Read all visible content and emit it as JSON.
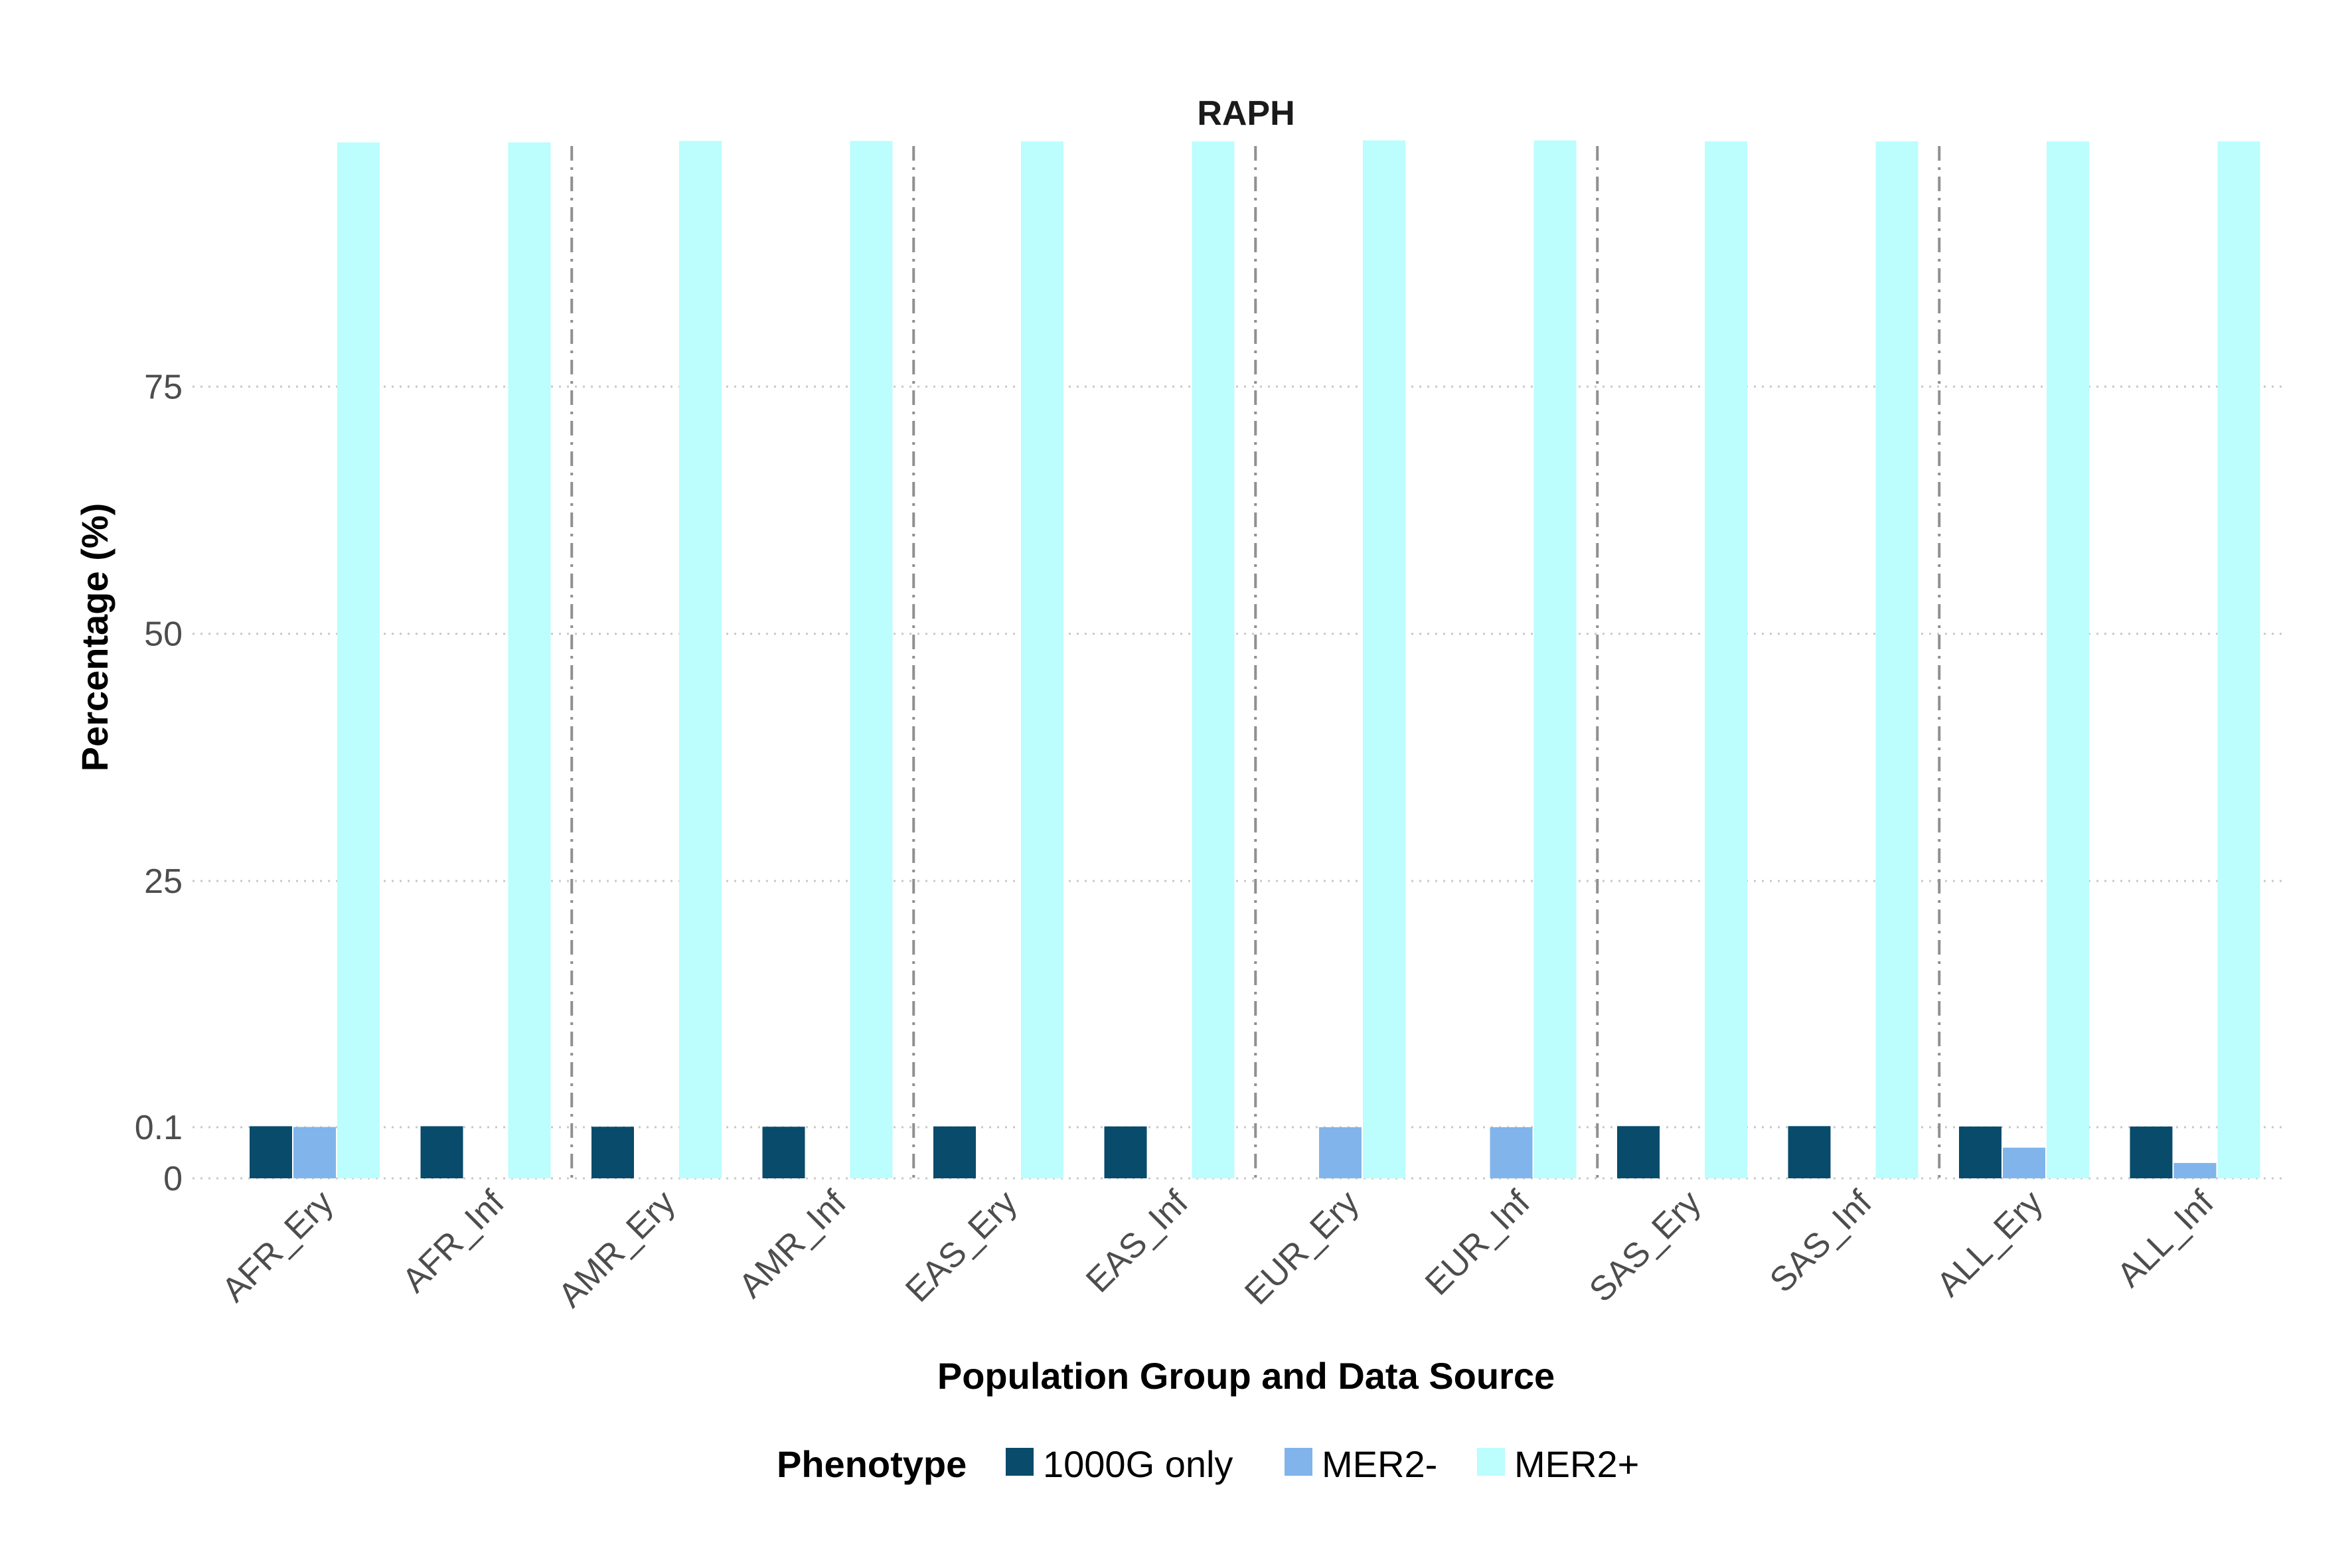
{
  "chart_data": {
    "type": "bar",
    "title": "RAPH",
    "xlabel": "Population Group and Data Source",
    "ylabel": "Percentage (%)",
    "y_tick_labels": [
      "0",
      "0.1",
      "25",
      "50",
      "75"
    ],
    "grid": true,
    "group_separators": true,
    "legend_position": "bottom",
    "legend_title": "Phenotype",
    "categories": [
      "AFR_Ery",
      "AFR_Inf",
      "AMR_Ery",
      "AMR_Inf",
      "EAS_Ery",
      "EAS_Inf",
      "EUR_Ery",
      "EUR_Inf",
      "SAS_Ery",
      "SAS_Inf",
      "ALL_Ery",
      "ALL_Inf"
    ],
    "series": [
      {
        "name": "1000G only",
        "color": "#084b6b",
        "values": [
          0.2,
          0.2,
          0.15,
          0.15,
          0.18,
          0.18,
          0,
          0,
          0.21,
          0.21,
          0.17,
          0.17
        ]
      },
      {
        "name": "MER2-",
        "color": "#80b4eb",
        "values": [
          0.12,
          0,
          0,
          0,
          0,
          0,
          0.1,
          0.1,
          0,
          0,
          0.06,
          0.03
        ]
      },
      {
        "name": "MER2+",
        "color": "#bcfdfd",
        "values": [
          99.7,
          99.7,
          99.85,
          99.85,
          99.8,
          99.8,
          99.9,
          99.9,
          99.8,
          99.8,
          99.8,
          99.8
        ]
      }
    ]
  }
}
